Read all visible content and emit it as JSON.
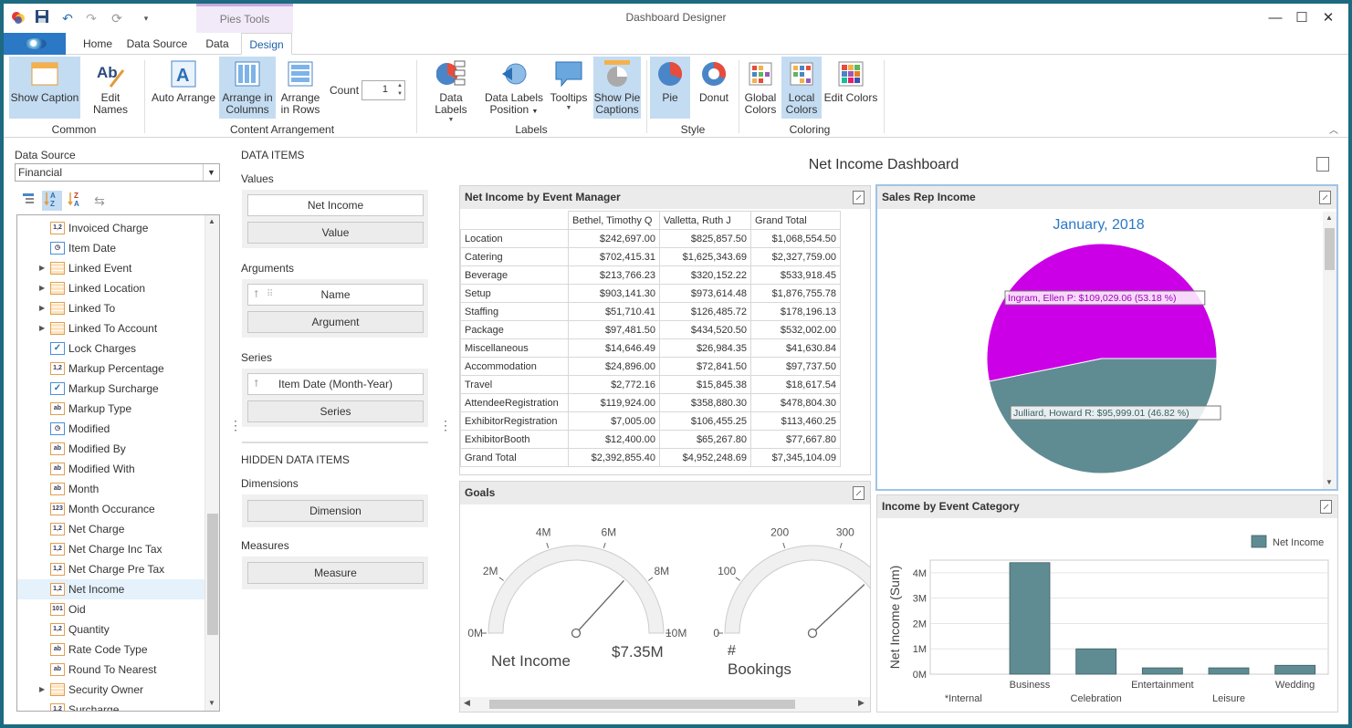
{
  "window": {
    "title": "Dashboard Designer",
    "context_tab": "Pies Tools"
  },
  "tabs": [
    "Home",
    "Data Source",
    "Data",
    "Design"
  ],
  "active_tab": "Design",
  "ribbon": {
    "show_caption": "Show Caption",
    "edit_names": "Edit Names",
    "auto_arrange": "Auto Arrange",
    "arrange_in_columns_1": "Arrange in",
    "arrange_in_columns_2": "Columns",
    "arrange_in_rows_1": "Arrange",
    "arrange_in_rows_2": "in Rows",
    "count_label": "Count",
    "count_value": "1",
    "data_labels": "Data Labels",
    "data_labels_position_1": "Data Labels",
    "data_labels_position_2": "Position",
    "tooltips": "Tooltips",
    "show_pie_captions_1": "Show Pie",
    "show_pie_captions_2": "Captions",
    "pie": "Pie",
    "donut": "Donut",
    "global_colors_1": "Global",
    "global_colors_2": "Colors",
    "local_colors_1": "Local",
    "local_colors_2": "Colors",
    "edit_colors": "Edit Colors",
    "groups": {
      "common": "Common",
      "content": "Content Arrangement",
      "labels": "Labels",
      "style": "Style",
      "coloring": "Coloring"
    }
  },
  "datasource": {
    "label": "Data Source",
    "selected": "Financial",
    "fields": [
      {
        "name": "Invoiced Charge",
        "icon": "num",
        "expandable": false
      },
      {
        "name": "Item Date",
        "icon": "clock",
        "expandable": false
      },
      {
        "name": "Linked Event",
        "icon": "table",
        "expandable": true
      },
      {
        "name": "Linked Location",
        "icon": "table",
        "expandable": true
      },
      {
        "name": "Linked To",
        "icon": "table",
        "expandable": true
      },
      {
        "name": "Linked To Account",
        "icon": "table",
        "expandable": true
      },
      {
        "name": "Lock Charges",
        "icon": "check",
        "expandable": false
      },
      {
        "name": "Markup Percentage",
        "icon": "num",
        "expandable": false
      },
      {
        "name": "Markup Surcharge",
        "icon": "check",
        "expandable": false
      },
      {
        "name": "Markup Type",
        "icon": "text",
        "expandable": false
      },
      {
        "name": "Modified",
        "icon": "clock",
        "expandable": false
      },
      {
        "name": "Modified By",
        "icon": "text",
        "expandable": false
      },
      {
        "name": "Modified With",
        "icon": "text",
        "expandable": false
      },
      {
        "name": "Month",
        "icon": "text",
        "expandable": false
      },
      {
        "name": "Month Occurance",
        "icon": "int",
        "expandable": false
      },
      {
        "name": "Net Charge",
        "icon": "num",
        "expandable": false
      },
      {
        "name": "Net Charge Inc Tax",
        "icon": "num",
        "expandable": false
      },
      {
        "name": "Net Charge Pre Tax",
        "icon": "num",
        "expandable": false
      },
      {
        "name": "Net Income",
        "icon": "num",
        "expandable": false,
        "selected": true
      },
      {
        "name": "Oid",
        "icon": "bin",
        "expandable": false
      },
      {
        "name": "Quantity",
        "icon": "num",
        "expandable": false
      },
      {
        "name": "Rate Code Type",
        "icon": "text",
        "expandable": false
      },
      {
        "name": "Round To Nearest",
        "icon": "text",
        "expandable": false
      },
      {
        "name": "Security Owner",
        "icon": "table",
        "expandable": true
      },
      {
        "name": "Surcharge",
        "icon": "num",
        "expandable": false
      }
    ]
  },
  "icons": {
    "num": "1,2",
    "int": "123",
    "bin": "101",
    "text": "ab",
    "check": "✓",
    "clock": "◷",
    "table": ""
  },
  "data_items": {
    "title": "DATA ITEMS",
    "values_label": "Values",
    "values_item": "Net Income",
    "values_placeholder": "Value",
    "arguments_label": "Arguments",
    "arguments_item": "Name",
    "arguments_placeholder": "Argument",
    "series_label": "Series",
    "series_item": "Item Date (Month-Year)",
    "series_placeholder": "Series",
    "hidden_title": "HIDDEN DATA ITEMS",
    "dimensions_label": "Dimensions",
    "dimensions_placeholder": "Dimension",
    "measures_label": "Measures",
    "measures_placeholder": "Measure"
  },
  "dashboard": {
    "title": "Net Income Dashboard",
    "pivot": {
      "title": "Net Income by Event Manager",
      "columns": [
        "Bethel, Timothy Q",
        "Valletta, Ruth J",
        "Grand Total"
      ],
      "rows": [
        [
          "Location",
          "$242,697.00",
          "$825,857.50",
          "$1,068,554.50"
        ],
        [
          "Catering",
          "$702,415.31",
          "$1,625,343.69",
          "$2,327,759.00"
        ],
        [
          "Beverage",
          "$213,766.23",
          "$320,152.22",
          "$533,918.45"
        ],
        [
          "Setup",
          "$903,141.30",
          "$973,614.48",
          "$1,876,755.78"
        ],
        [
          "Staffing",
          "$51,710.41",
          "$126,485.72",
          "$178,196.13"
        ],
        [
          "Package",
          "$97,481.50",
          "$434,520.50",
          "$532,002.00"
        ],
        [
          "Miscellaneous",
          "$14,646.49",
          "$26,984.35",
          "$41,630.84"
        ],
        [
          "Accommodation",
          "$24,896.00",
          "$72,841.50",
          "$97,737.50"
        ],
        [
          "Travel",
          "$2,772.16",
          "$15,845.38",
          "$18,617.54"
        ],
        [
          "AttendeeRegistration",
          "$119,924.00",
          "$358,880.30",
          "$478,804.30"
        ],
        [
          "ExhibitorRegistration",
          "$7,005.00",
          "$106,455.25",
          "$113,460.25"
        ],
        [
          "ExhibitorBooth",
          "$12,400.00",
          "$65,267.80",
          "$77,667.80"
        ],
        [
          "Grand Total",
          "$2,392,855.40",
          "$4,952,248.69",
          "$7,345,104.09"
        ]
      ]
    },
    "pie": {
      "title": "Sales Rep Income",
      "caption": "January, 2018",
      "slices": [
        {
          "label": "Ingram, Ellen P: $109,029.06 (53.18 %)",
          "value": 109029.06,
          "percent": 53.18,
          "color": "#cc00e6"
        },
        {
          "label": "Julliard, Howard R: $95,999.01 (46.82 %)",
          "value": 95999.01,
          "percent": 46.82,
          "color": "#5f8c92"
        }
      ]
    },
    "gauges": {
      "title": "Goals",
      "items": [
        {
          "name": "Net Income",
          "value_text": "$7.35M",
          "value": 7.35,
          "min": 0,
          "max": 10,
          "ticks": [
            "0M",
            "2M",
            "4M",
            "6M",
            "8M",
            "10M"
          ]
        },
        {
          "name_1": "#",
          "name_2": "Bookings",
          "ticks": [
            "0",
            "100",
            "200",
            "300"
          ],
          "min": 0,
          "max": 500
        }
      ]
    },
    "bar": {
      "title": "Income by Event Category",
      "chart_data": {
        "type": "bar",
        "categories": [
          "*Internal",
          "Business",
          "Celebration",
          "Entertainment",
          "Leisure",
          "Wedding"
        ],
        "series": [
          {
            "name": "Net Income",
            "values": [
              0,
              4.4,
              1.0,
              0.25,
              0.25,
              0.35
            ]
          }
        ],
        "ylabel": "Net Income (Sum)",
        "yticks": [
          "0M",
          "1M",
          "2M",
          "3M",
          "4M"
        ],
        "ylim": [
          0,
          4.5
        ],
        "legend": "top-right",
        "color": "#5f8c92"
      }
    }
  }
}
